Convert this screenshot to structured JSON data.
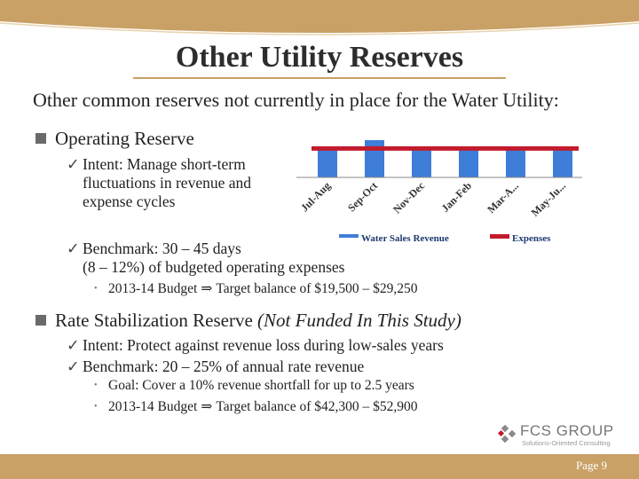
{
  "slide": {
    "title": "Other Utility Reserves",
    "subtitle": "Other common reserves not currently in place for the Water Utility:"
  },
  "operating": {
    "heading": "Operating Reserve",
    "intent_lines": [
      "Intent: Manage short-term",
      "fluctuations in revenue and",
      "expense cycles"
    ],
    "benchmark_lines": [
      "Benchmark: 30 – 45 days",
      "(8 – 12%) of budgeted operating expenses"
    ],
    "budget": {
      "prefix": "2013-14 Budget",
      "arrow": "⇒",
      "text": "Target balance of $19,500 – $29,250"
    }
  },
  "rate_stabilization": {
    "heading": "Rate Stabilization Reserve",
    "note": "(Not Funded In This Study)",
    "intent": "Intent: Protect against revenue loss during low-sales years",
    "benchmark": "Benchmark: 20 – 25% of annual rate revenue",
    "goal": "Goal: Cover a 10% revenue shortfall for up to 2.5 years",
    "budget": {
      "prefix": "2013-14 Budget",
      "arrow": "⇒",
      "text": "Target balance of $42,300 – $52,900"
    }
  },
  "chart_data": {
    "type": "bar",
    "categories": [
      "Jul-Aug",
      "Sep-Oct",
      "Nov-Dec",
      "Jan-Feb",
      "Mar-A...",
      "May-Ju..."
    ],
    "series": [
      {
        "name": "Water Sales Revenue",
        "type": "bar",
        "color": "#3f7ed8",
        "values": [
          100,
          125,
          100,
          100,
          100,
          100
        ]
      },
      {
        "name": "Expenses",
        "type": "line",
        "color": "#c21b2c",
        "values": [
          100,
          100,
          100,
          100,
          100,
          100
        ]
      }
    ],
    "legend": "bottom",
    "grid": false
  },
  "logo": {
    "name": "FCS GROUP",
    "tagline": "Solutions-Oriented Consulting"
  },
  "page": "Page 9",
  "colors": {
    "accent": "#c9a065",
    "bar": "#3f7ed8",
    "line": "#c21b2c"
  },
  "icons": {
    "bullet1": "square-bullet-icon",
    "bullet2": "checkmark-icon",
    "bullet3": "dot-bullet-icon"
  }
}
